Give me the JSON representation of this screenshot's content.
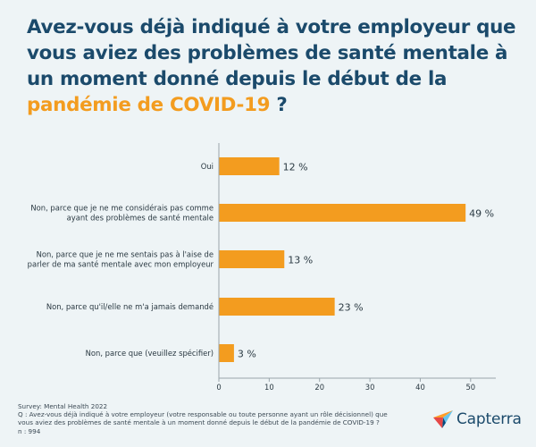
{
  "title": {
    "lead": "Avez-vous déjà indiqué à votre employeur que vous aviez des problèmes de santé mentale à un moment donné depuis le début de la ",
    "highlight": "pandémie de COVID-19",
    "trail": " ?"
  },
  "chart_data": {
    "type": "bar",
    "orientation": "horizontal",
    "categories": [
      [
        "Oui"
      ],
      [
        "Non, parce que je ne me considérais pas comme",
        "ayant des problèmes de santé mentale"
      ],
      [
        "Non, parce que je ne me sentais pas à l'aise de",
        "parler de ma santé mentale avec mon employeur"
      ],
      [
        "Non, parce qu'il/elle ne m'a jamais demandé"
      ],
      [
        "Non, parce que (veuillez spécifier)"
      ]
    ],
    "values": [
      12,
      49,
      13,
      23,
      3
    ],
    "data_labels": [
      "12 %",
      "49 %",
      "13 %",
      "23 %",
      "3 %"
    ],
    "x_ticks": [
      0,
      10,
      20,
      30,
      40,
      50
    ],
    "xlim": [
      0,
      55
    ],
    "bar_color": "#f39c1f",
    "grid": false
  },
  "footer": {
    "survey": "Survey: Mental Health 2022",
    "question": "Q : Avez-vous déjà indiqué à votre employeur (votre responsable ou toute personne ayant un rôle décisionnel) que vous aviez des problèmes de santé mentale à un moment donné depuis le début de la pandémie de COVID-19 ?",
    "n": "n : 994"
  },
  "logo": {
    "text": "Capterra",
    "icon": "capterra-arrow-icon"
  },
  "colors": {
    "background": "#eef4f6",
    "title": "#1b4a6b",
    "accent": "#f39c1f"
  }
}
